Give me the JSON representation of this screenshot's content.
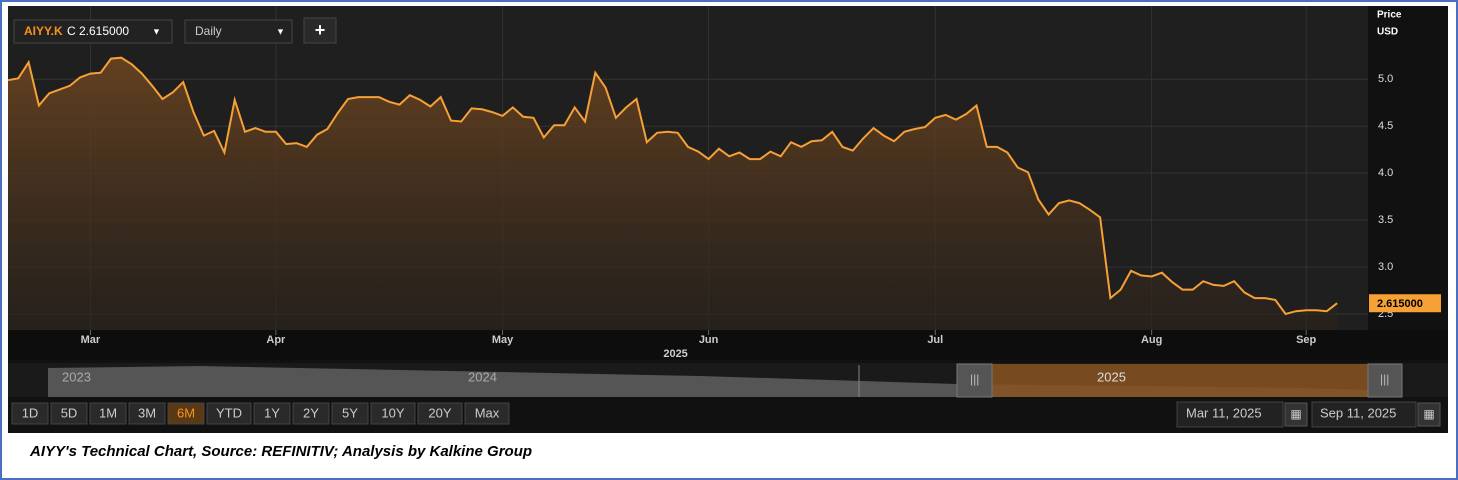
{
  "chart_data": {
    "type": "line",
    "symbol": "AIYY.K",
    "close_label": "C 2.615000",
    "interval": "Daily",
    "add_button": "+",
    "axis_title": "Price",
    "axis_unit": "USD",
    "color": "#f7a035",
    "values": [
      4.99,
      5.01,
      5.18,
      4.72,
      4.85,
      4.89,
      4.93,
      5.02,
      5.06,
      5.07,
      5.22,
      5.23,
      5.16,
      5.06,
      4.93,
      4.79,
      4.86,
      4.97,
      4.65,
      4.4,
      4.45,
      4.22,
      4.78,
      4.44,
      4.48,
      4.44,
      4.44,
      4.31,
      4.32,
      4.28,
      4.41,
      4.47,
      4.64,
      4.79,
      4.81,
      4.81,
      4.81,
      4.76,
      4.73,
      4.83,
      4.78,
      4.71,
      4.81,
      4.56,
      4.55,
      4.69,
      4.68,
      4.65,
      4.61,
      4.7,
      4.6,
      4.59,
      4.38,
      4.51,
      4.51,
      4.7,
      4.55,
      5.07,
      4.91,
      4.59,
      4.7,
      4.79,
      4.33,
      4.43,
      4.44,
      4.43,
      4.28,
      4.23,
      4.15,
      4.26,
      4.18,
      4.22,
      4.15,
      4.15,
      4.23,
      4.18,
      4.33,
      4.28,
      4.34,
      4.35,
      4.44,
      4.28,
      4.24,
      4.37,
      4.48,
      4.4,
      4.34,
      4.44,
      4.47,
      4.49,
      4.59,
      4.62,
      4.57,
      4.63,
      4.72,
      4.28,
      4.28,
      4.22,
      4.06,
      4.01,
      3.72,
      3.56,
      3.68,
      3.71,
      3.68,
      3.61,
      3.53,
      2.67,
      2.76,
      2.96,
      2.91,
      2.9,
      2.94,
      2.84,
      2.76,
      2.76,
      2.85,
      2.81,
      2.8,
      2.85,
      2.73,
      2.67,
      2.67,
      2.65,
      2.5,
      2.53,
      2.54,
      2.54,
      2.53,
      2.615
    ],
    "current_price": {
      "value": 2.615,
      "label": "2.615000"
    },
    "xlim": [
      0,
      132
    ],
    "xticks": [
      {
        "value": 8,
        "label": "Mar"
      },
      {
        "value": 26,
        "label": "Apr"
      },
      {
        "value": 48,
        "label": "May"
      },
      {
        "value": 68,
        "label": "Jun"
      },
      {
        "value": 90,
        "label": "Jul"
      },
      {
        "value": 111,
        "label": "Aug"
      },
      {
        "value": 126,
        "label": "Sep"
      }
    ],
    "year_label": "2025",
    "ylim": [
      2.33,
      5.78
    ],
    "yticks": [
      {
        "value": 2.5,
        "label": "2.5"
      },
      {
        "value": 3,
        "label": "3.0"
      },
      {
        "value": 3.5,
        "label": "3.5"
      },
      {
        "value": 4,
        "label": "4.0"
      },
      {
        "value": 4.5,
        "label": "4.5"
      },
      {
        "value": 5,
        "label": "5.0"
      }
    ],
    "grid": true
  },
  "navigator": {
    "years": [
      "2023",
      "2024",
      "2025"
    ]
  },
  "range_buttons": [
    "1D",
    "5D",
    "1M",
    "3M",
    "6M",
    "YTD",
    "1Y",
    "2Y",
    "5Y",
    "10Y",
    "20Y",
    "Max"
  ],
  "selected_range": "6M",
  "date_from": "Mar 11, 2025",
  "date_to": "Sep 11, 2025",
  "caption": "AIYY's Technical Chart, Source: REFINITIV; Analysis by Kalkine Group"
}
